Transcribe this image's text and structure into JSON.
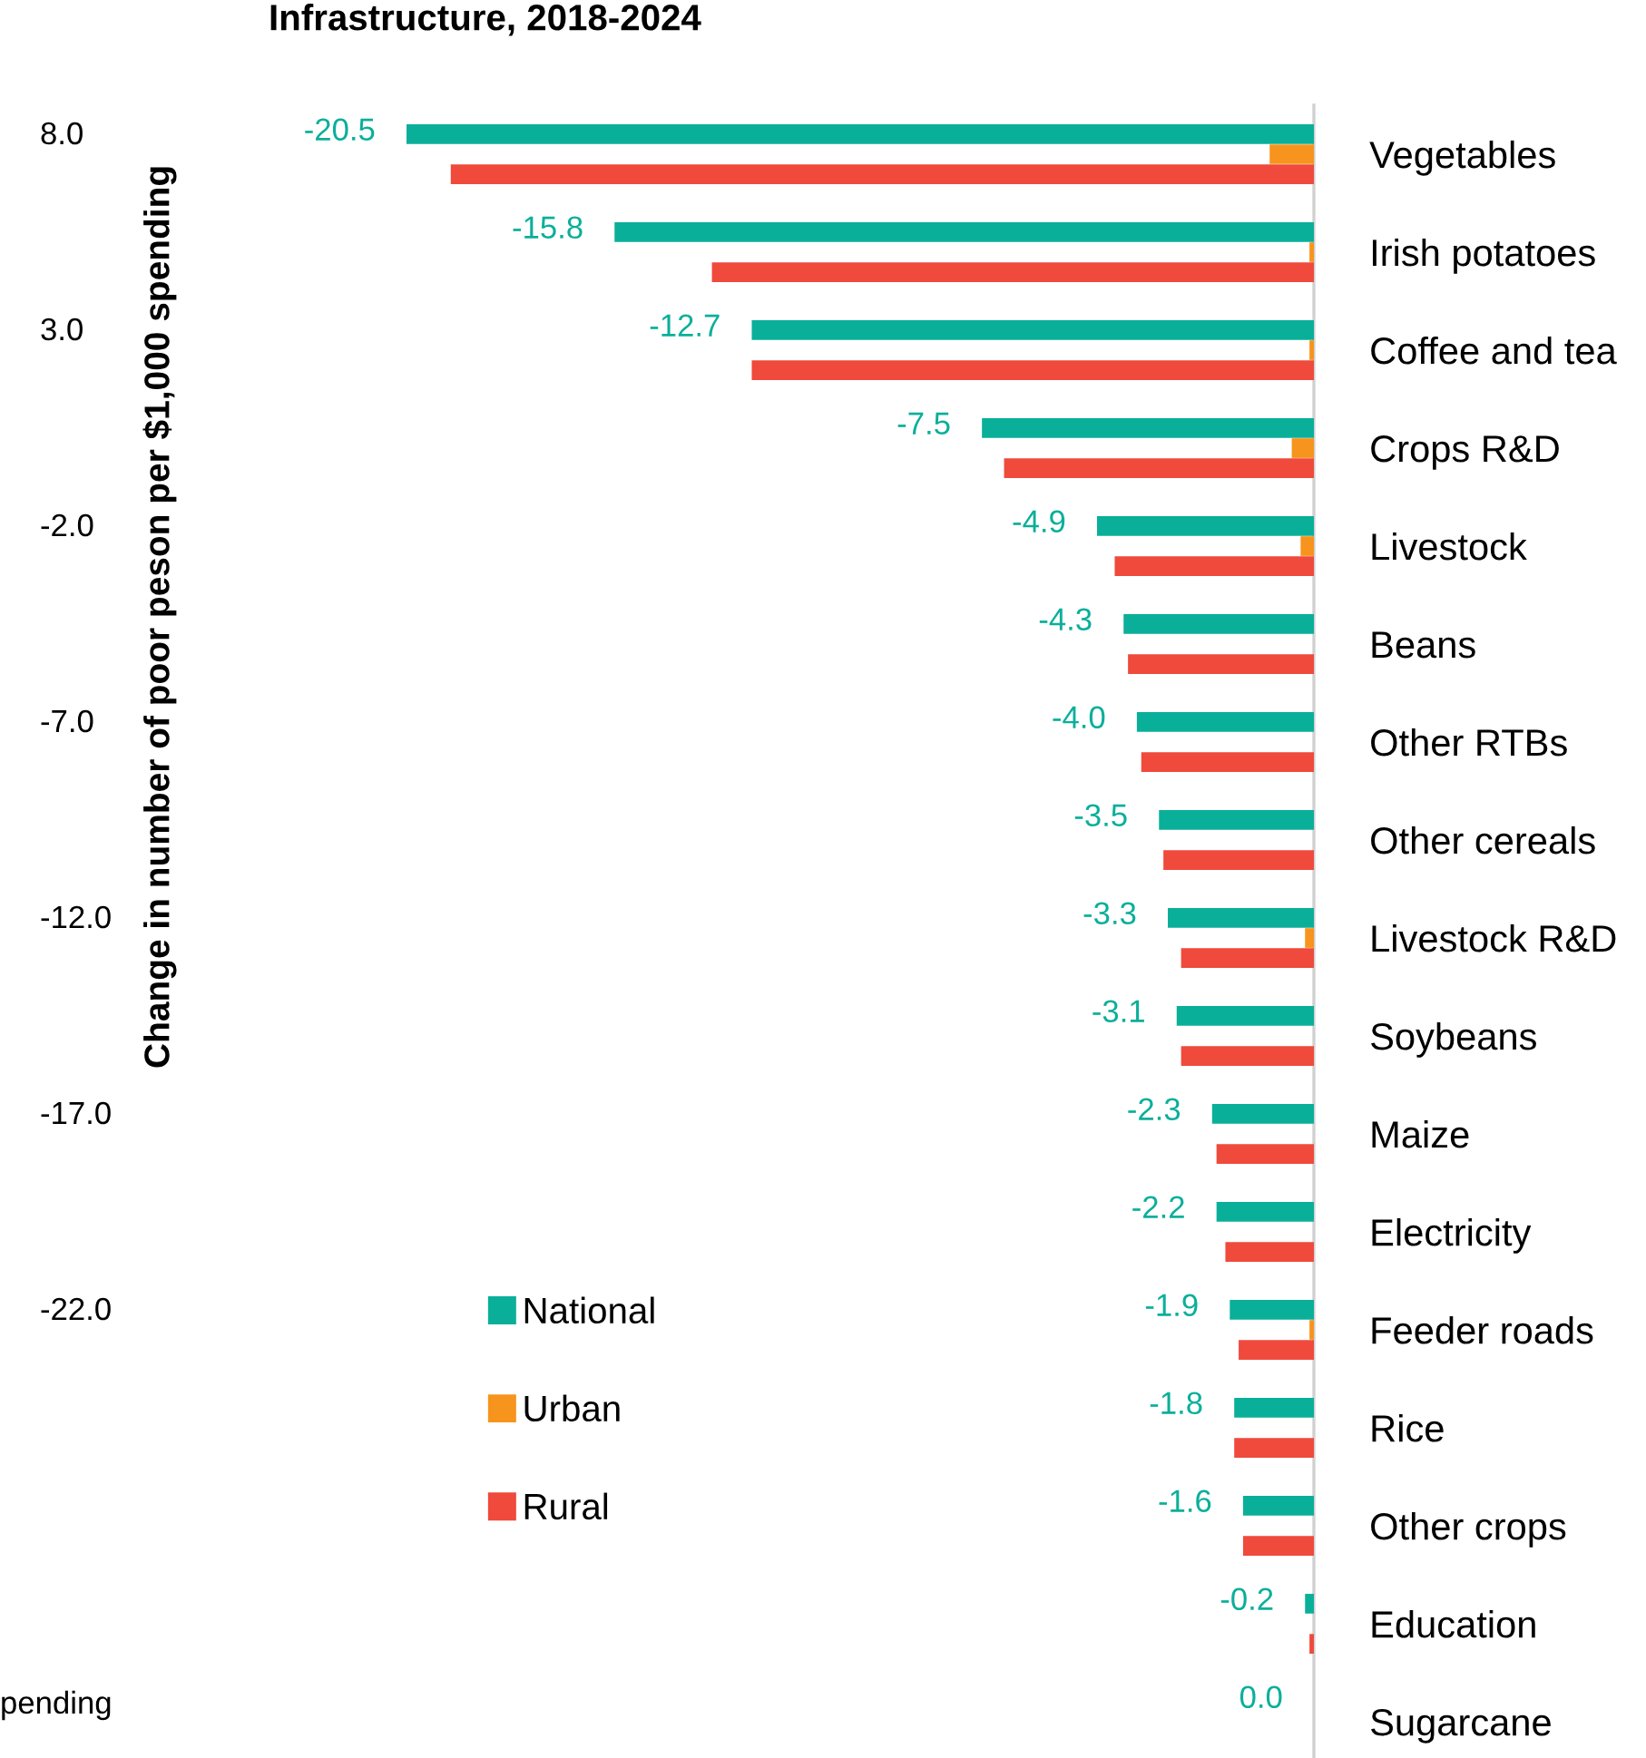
{
  "chart_data": {
    "type": "bar",
    "orientation": "horizontal",
    "title": "Infrastructure, 2018-2024",
    "categories": [
      "Vegetables",
      "Irish potatoes",
      "Coffee and tea",
      "Crops R&D",
      "Livestock",
      "Beans",
      "Other RTBs",
      "Other cereals",
      "Livestock R&D",
      "Soybeans",
      "Maize",
      "Electricity",
      "Feeder roads",
      "Rice",
      "Other crops",
      "Education",
      "Sugarcane"
    ],
    "series": [
      {
        "name": "National",
        "color": "#0aaf9a",
        "values": [
          -20.5,
          -15.8,
          -12.7,
          -7.5,
          -4.9,
          -4.3,
          -4.0,
          -3.5,
          -3.3,
          -3.1,
          -2.3,
          -2.2,
          -1.9,
          -1.8,
          -1.6,
          -0.2,
          0.0
        ],
        "value_labels": [
          "-20.5",
          "-15.8",
          "-12.7",
          "-7.5",
          "-4.9",
          "-4.3",
          "-4.0",
          "-3.5",
          "-3.3",
          "-3.1",
          "-2.3",
          "-2.2",
          "-1.9",
          "-1.8",
          "-1.6",
          "-0.2",
          "0.0"
        ]
      },
      {
        "name": "Urban",
        "color": "#f7941d",
        "values": [
          -1.0,
          -0.1,
          -0.1,
          -0.5,
          -0.3,
          0.0,
          0.0,
          0.0,
          -0.2,
          0.0,
          0.0,
          0.0,
          -0.1,
          0.0,
          0.0,
          0.0,
          0.0
        ]
      },
      {
        "name": "Rural",
        "color": "#ef4a3c",
        "values": [
          -19.5,
          -13.6,
          -12.7,
          -7.0,
          -4.5,
          -4.2,
          -3.9,
          -3.4,
          -3.0,
          -3.0,
          -2.2,
          -2.0,
          -1.7,
          -1.8,
          -1.6,
          -0.1,
          0.0
        ]
      }
    ],
    "tick_labels": "y",
    "legend": "bottom left",
    "grid": false,
    "annotations": [
      "8.0",
      "3.0",
      "-2.0",
      "-7.0",
      "-12.0",
      "-17.0",
      "-22.0",
      "pending",
      "Change in number of poor peson per $1,000 spending"
    ]
  }
}
